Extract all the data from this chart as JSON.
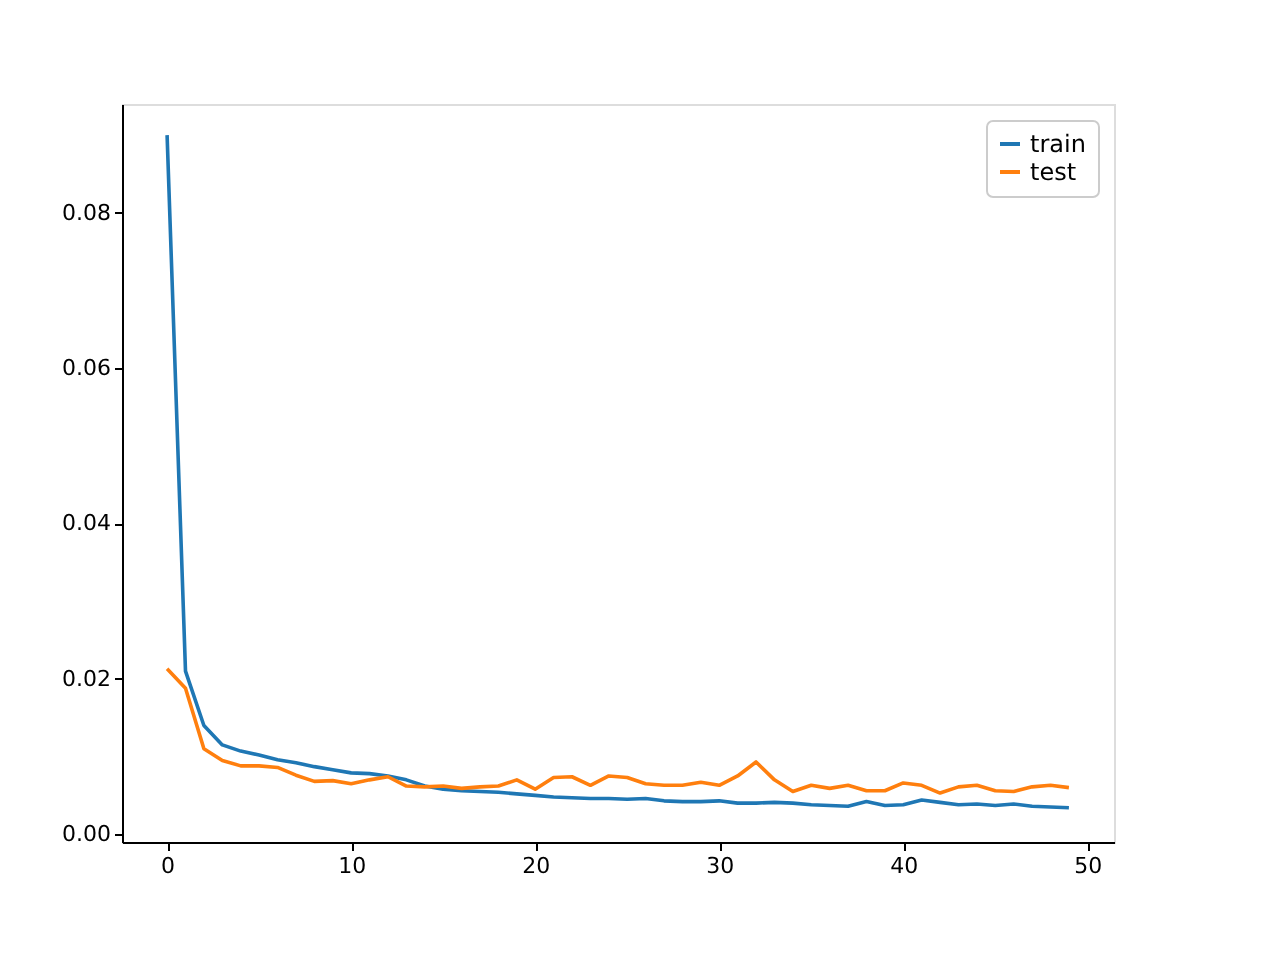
{
  "chart_data": {
    "type": "line",
    "x": [
      0,
      1,
      2,
      3,
      4,
      5,
      6,
      7,
      8,
      9,
      10,
      11,
      12,
      13,
      14,
      15,
      16,
      17,
      18,
      19,
      20,
      21,
      22,
      23,
      24,
      25,
      26,
      27,
      28,
      29,
      30,
      31,
      32,
      33,
      34,
      35,
      36,
      37,
      38,
      39,
      40,
      41,
      42,
      43,
      44,
      45,
      46,
      47,
      48,
      49
    ],
    "series": [
      {
        "name": "train",
        "color": "#1f77b4",
        "values": [
          0.09,
          0.021,
          0.014,
          0.0115,
          0.0107,
          0.0102,
          0.0096,
          0.0092,
          0.0087,
          0.0083,
          0.0079,
          0.0078,
          0.0075,
          0.007,
          0.0062,
          0.0058,
          0.0056,
          0.0055,
          0.0054,
          0.0052,
          0.005,
          0.0048,
          0.0047,
          0.0046,
          0.0046,
          0.0045,
          0.0046,
          0.0043,
          0.0042,
          0.0042,
          0.0043,
          0.004,
          0.004,
          0.0041,
          0.004,
          0.0038,
          0.0037,
          0.0036,
          0.0042,
          0.0037,
          0.0038,
          0.0044,
          0.0041,
          0.0038,
          0.0039,
          0.0037,
          0.0039,
          0.0036,
          0.0035,
          0.0034
        ]
      },
      {
        "name": "test",
        "color": "#ff7f0e",
        "values": [
          0.0213,
          0.0188,
          0.011,
          0.0095,
          0.0088,
          0.0088,
          0.0086,
          0.0076,
          0.0068,
          0.0069,
          0.0065,
          0.007,
          0.0074,
          0.0062,
          0.0061,
          0.0062,
          0.0059,
          0.0061,
          0.0062,
          0.007,
          0.0058,
          0.0073,
          0.0074,
          0.0063,
          0.0075,
          0.0073,
          0.0065,
          0.0063,
          0.0063,
          0.0067,
          0.0063,
          0.0075,
          0.0093,
          0.007,
          0.0055,
          0.0063,
          0.0059,
          0.0063,
          0.0056,
          0.0056,
          0.0066,
          0.0063,
          0.0053,
          0.0061,
          0.0063,
          0.0056,
          0.0055,
          0.0061,
          0.0063,
          0.006
        ]
      }
    ],
    "xlim": [
      -2.45,
      51.45
    ],
    "ylim": [
      -0.001,
      0.094
    ],
    "xticks": [
      0,
      10,
      20,
      30,
      40,
      50
    ],
    "yticks": [
      {
        "value": 0,
        "label": "0.00"
      },
      {
        "value": 0.02,
        "label": "0.02"
      },
      {
        "value": 0.04,
        "label": "0.04"
      },
      {
        "value": 0.06,
        "label": "0.06"
      },
      {
        "value": 0.08,
        "label": "0.08"
      }
    ],
    "legend": "top right",
    "grid": false,
    "marker": "none",
    "line_style": "solid"
  }
}
